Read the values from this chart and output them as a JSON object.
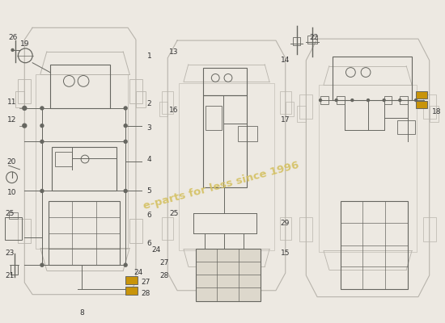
{
  "bg_color": "#ede9e2",
  "car_color": "#b8b4ac",
  "line_color": "#666660",
  "wm_color": "#d4c060",
  "wm_text": "e-parts for less since 1996",
  "label_color": "#333333",
  "yellow_fill": "#c8940a",
  "light_fill": "#ddd8cc"
}
